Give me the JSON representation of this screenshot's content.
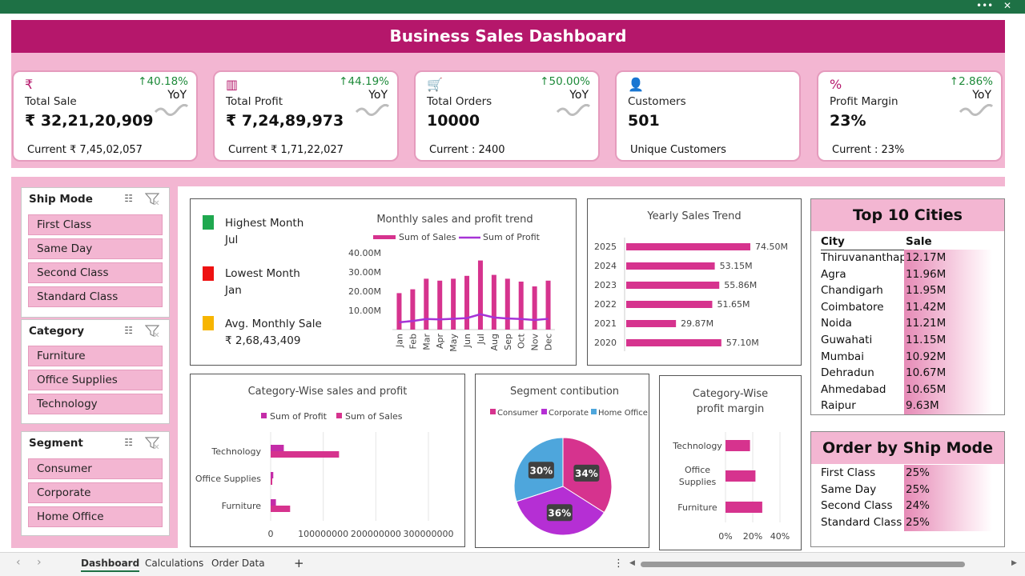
{
  "window": {
    "more": "•••",
    "close": "✕"
  },
  "title": "Business Sales Dashboard",
  "kpis": [
    {
      "icon": "rupee-icon",
      "glyph": "₹",
      "label": "Total Sale",
      "value": "₹ 32,21,20,909",
      "change": "↑40.18%",
      "yoy": "YoY",
      "current": "Current ₹ 7,45,02,057"
    },
    {
      "icon": "bar-chart-icon",
      "glyph": "▥",
      "label": "Total Profit",
      "value": "₹ 7,24,89,973",
      "change": "↑44.19%",
      "yoy": "YoY",
      "current": "Current ₹ 1,71,22,027"
    },
    {
      "icon": "cart-icon",
      "glyph": "🛒",
      "label": "Total Orders",
      "value": "10000",
      "change": "↑50.00%",
      "yoy": "YoY",
      "current": "Current : 2400"
    },
    {
      "icon": "person-icon",
      "glyph": "👤",
      "label": "Customers",
      "value": "501",
      "change": "",
      "yoy": "",
      "current": "Unique Customers"
    },
    {
      "icon": "percent-bag-icon",
      "glyph": "%",
      "label": "Profit Margin",
      "value": "23%",
      "change": "↑2.86%",
      "yoy": "YoY",
      "current": "Current : 23%"
    }
  ],
  "slicers": {
    "ship_mode": {
      "title": "Ship Mode",
      "items": [
        "First Class",
        "Same Day",
        "Second Class",
        "Standard Class"
      ]
    },
    "category": {
      "title": "Category",
      "items": [
        "Furniture",
        "Office Supplies",
        "Technology"
      ]
    },
    "segment": {
      "title": "Segment",
      "items": [
        "Consumer",
        "Corporate",
        "Home Office"
      ]
    }
  },
  "highlights": {
    "highest": {
      "label": "Highest Month",
      "value": "Jul",
      "color": "#1fa84f"
    },
    "lowest": {
      "label": "Lowest Month",
      "value": "Jan",
      "color": "#ee1111"
    },
    "avg": {
      "label": "Avg. Monthly Sale",
      "value": "₹ 2,68,43,409",
      "color": "#f7b500"
    }
  },
  "chart_data": [
    {
      "type": "bar",
      "title": "Monthly sales and profit trend",
      "categories": [
        "Jan",
        "Feb",
        "Mar",
        "Apr",
        "May",
        "Jun",
        "Jul",
        "Aug",
        "Sep",
        "Oct",
        "Nov",
        "Dec"
      ],
      "series": [
        {
          "name": "Sum of Sales",
          "values": [
            19000000,
            21000000,
            26500000,
            25500000,
            26500000,
            28000000,
            36000000,
            28500000,
            26500000,
            25000000,
            22500000,
            25500000
          ]
        },
        {
          "name": "Sum of Profit",
          "values": [
            3800000,
            4500000,
            5500000,
            5300000,
            5600000,
            6000000,
            8000000,
            6300000,
            5800000,
            5500000,
            5000000,
            5600000
          ]
        }
      ],
      "yticks": [
        "10.00M",
        "20.00M",
        "30.00M",
        "40.00M"
      ],
      "ylim": [
        0,
        40000000
      ],
      "colors": {
        "sales": "#d6338e",
        "profit": "#a633d6"
      }
    },
    {
      "type": "bar",
      "title": "Yearly Sales Trend",
      "categories": [
        "2025",
        "2024",
        "2023",
        "2022",
        "2021",
        "2020"
      ],
      "values": [
        74.5,
        53.15,
        55.86,
        51.65,
        29.87,
        57.1
      ],
      "labels": [
        "74.50M",
        "53.15M",
        "55.86M",
        "51.65M",
        "29.87M",
        "57.10M"
      ],
      "unit": "M",
      "color": "#d6338e"
    },
    {
      "type": "bar",
      "title": "Category-Wise sales and profit",
      "categories": [
        "Technology",
        "Office Supplies",
        "Furniture"
      ],
      "series": [
        {
          "name": "Sum of Profit",
          "values": [
            25000000,
            5000000,
            10000000
          ]
        },
        {
          "name": "Sum of Sales",
          "values": [
            130000000,
            2000000,
            37000000
          ]
        }
      ],
      "xticks": [
        "0",
        "100000000",
        "200000000",
        "300000000"
      ],
      "xlim": [
        0,
        300000000
      ],
      "colors": {
        "profit": "#c42ca8",
        "sales": "#d6338e"
      }
    },
    {
      "type": "pie",
      "title": "Segment contibution",
      "categories": [
        "Consumer",
        "Corporate",
        "Home Office"
      ],
      "values": [
        34,
        36,
        30
      ],
      "labels": [
        "34%",
        "36%",
        "30%"
      ],
      "colors": [
        "#d6338e",
        "#b52fd4",
        "#4ea6dc"
      ]
    },
    {
      "type": "bar",
      "title": "Category-Wise profit margin",
      "categories": [
        "Technology",
        "Office Supplies",
        "Furniture"
      ],
      "values": [
        18,
        22,
        27
      ],
      "xticks": [
        "0%",
        "20%",
        "40%"
      ],
      "xlim": [
        0,
        40
      ],
      "color": "#d6338e"
    }
  ],
  "top_cities": {
    "title": "Top 10 Cities",
    "headers": [
      "City",
      "Sale"
    ],
    "rows": [
      [
        "Thiruvananthap",
        "12.17M"
      ],
      [
        "Agra",
        "11.96M"
      ],
      [
        "Chandigarh",
        "11.95M"
      ],
      [
        "Coimbatore",
        "11.42M"
      ],
      [
        "Noida",
        "11.21M"
      ],
      [
        "Guwahati",
        "11.15M"
      ],
      [
        "Mumbai",
        "10.92M"
      ],
      [
        "Dehradun",
        "10.67M"
      ],
      [
        "Ahmedabad",
        "10.65M"
      ],
      [
        "Raipur",
        "9.63M"
      ]
    ]
  },
  "ship_mode_orders": {
    "title": "Order by Ship Mode",
    "rows": [
      [
        "First Class",
        "25%"
      ],
      [
        "Same Day",
        "25%"
      ],
      [
        "Second Class",
        "24%"
      ],
      [
        "Standard Class",
        "25%"
      ]
    ]
  },
  "tabs": [
    "Dashboard",
    "Calculations",
    "Order Data"
  ],
  "tab_add": "+",
  "nav": {
    "prev": "‹",
    "next": "›",
    "more": "⋮"
  }
}
